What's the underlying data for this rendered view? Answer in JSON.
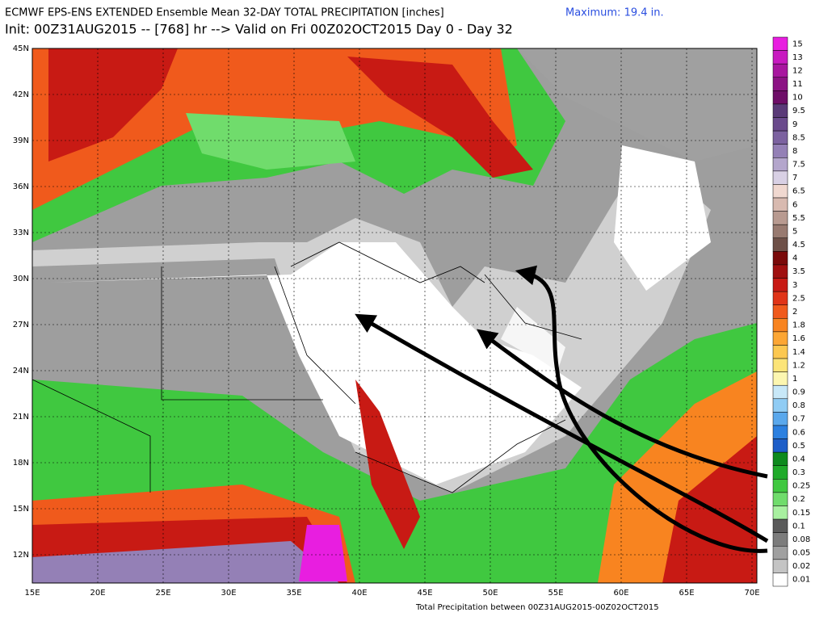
{
  "header": {
    "title": "ECMWF EPS-ENS EXTENDED Ensemble Mean 32-DAY TOTAL PRECIPITATION [inches]",
    "init": "Init: 00Z31AUG2015 -- [768] hr --> Valid on Fri 00Z02OCT2015  Day 0 - Day 32",
    "maximum": "Maximum:  19.4 in."
  },
  "lat_labels": [
    "45N",
    "42N",
    "39N",
    "36N",
    "33N",
    "30N",
    "27N",
    "24N",
    "21N",
    "18N",
    "15N",
    "12N"
  ],
  "lon_labels": [
    "15E",
    "20E",
    "25E",
    "30E",
    "35E",
    "40E",
    "45E",
    "50E",
    "55E",
    "60E",
    "65E",
    "70E"
  ],
  "colorbar": [
    {
      "label": "15",
      "color": "#e81ee0"
    },
    {
      "label": "13",
      "color": "#c81ac0"
    },
    {
      "label": "12",
      "color": "#a8169f"
    },
    {
      "label": "11",
      "color": "#8c1284"
    },
    {
      "label": "10",
      "color": "#6e0e68"
    },
    {
      "label": "9.5",
      "color": "#5a3a78"
    },
    {
      "label": "9",
      "color": "#6a4a8c"
    },
    {
      "label": "8.5",
      "color": "#7c62a0"
    },
    {
      "label": "8",
      "color": "#9480b6"
    },
    {
      "label": "7.5",
      "color": "#b4a6cc"
    },
    {
      "label": "7",
      "color": "#d8d0e4"
    },
    {
      "label": "6.5",
      "color": "#f0d8d0"
    },
    {
      "label": "6",
      "color": "#d8bab0"
    },
    {
      "label": "5.5",
      "color": "#b89a90"
    },
    {
      "label": "5",
      "color": "#987a70"
    },
    {
      "label": "4.5",
      "color": "#6e5048"
    },
    {
      "label": "4",
      "color": "#7a0a0a"
    },
    {
      "label": "3.5",
      "color": "#a01010"
    },
    {
      "label": "3",
      "color": "#c81a14"
    },
    {
      "label": "2.5",
      "color": "#e03418"
    },
    {
      "label": "2",
      "color": "#f05a1c"
    },
    {
      "label": "1.8",
      "color": "#f88420"
    },
    {
      "label": "1.6",
      "color": "#fca634"
    },
    {
      "label": "1.4",
      "color": "#fcc850"
    },
    {
      "label": "1.2",
      "color": "#fce478"
    },
    {
      "label": "1",
      "color": "#fcf6b0"
    },
    {
      "label": "0.9",
      "color": "#c8e8f8"
    },
    {
      "label": "0.8",
      "color": "#90ccf4"
    },
    {
      "label": "0.7",
      "color": "#5aa8ec"
    },
    {
      "label": "0.6",
      "color": "#2c80e0"
    },
    {
      "label": "0.5",
      "color": "#1e5ec8"
    },
    {
      "label": "0.4",
      "color": "#0e8a1e"
    },
    {
      "label": "0.3",
      "color": "#20aa2a"
    },
    {
      "label": "0.25",
      "color": "#40c840"
    },
    {
      "label": "0.2",
      "color": "#70dc6c"
    },
    {
      "label": "0.15",
      "color": "#a8f0a0"
    },
    {
      "label": "0.1",
      "color": "#5a5a5a"
    },
    {
      "label": "0.08",
      "color": "#7c7c7c"
    },
    {
      "label": "0.05",
      "color": "#a0a0a0"
    },
    {
      "label": "0.02",
      "color": "#c4c4c4"
    },
    {
      "label": "0.01",
      "color": "#ffffff"
    }
  ],
  "footer": "Total Precipitation between 00Z31AUG2015-00Z02OCT2015"
}
